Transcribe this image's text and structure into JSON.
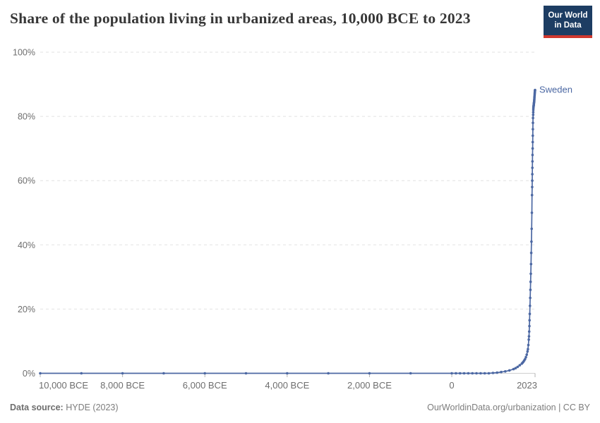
{
  "header": {
    "title": "Share of the population living in urbanized areas, 10,000 BCE to 2023",
    "logo": {
      "line1": "Our World",
      "line2": "in Data",
      "bg_color": "#1d3d63",
      "accent_color": "#d0382e"
    }
  },
  "chart_data": {
    "type": "line",
    "title": "Share of the population living in urbanized areas, 10,000 BCE to 2023",
    "xlabel": "",
    "ylabel": "",
    "unit": "%",
    "xlim": [
      -10000,
      2023
    ],
    "ylim": [
      0,
      100
    ],
    "grid": true,
    "gridline_color": "#e2e2e2",
    "axis_color": "#cfcfcf",
    "tick_color": "#b3b3b3",
    "axis_label_color": "#6e6e6e",
    "legend_position": "end-of-line",
    "x_ticks": [
      {
        "year": -10000,
        "label": "10,000 BCE"
      },
      {
        "year": -8000,
        "label": "8,000 BCE"
      },
      {
        "year": -6000,
        "label": "6,000 BCE"
      },
      {
        "year": -4000,
        "label": "4,000 BCE"
      },
      {
        "year": -2000,
        "label": "2,000 BCE"
      },
      {
        "year": 0,
        "label": "0"
      },
      {
        "year": 2023,
        "label": "2023"
      }
    ],
    "y_ticks": [
      {
        "value": 0,
        "label": "0%"
      },
      {
        "value": 20,
        "label": "20%"
      },
      {
        "value": 40,
        "label": "40%"
      },
      {
        "value": 60,
        "label": "60%"
      },
      {
        "value": 80,
        "label": "80%"
      },
      {
        "value": 100,
        "label": "100%"
      }
    ],
    "series": [
      {
        "name": "Sweden",
        "color": "#4c68a3",
        "points": [
          [
            -10000,
            0
          ],
          [
            -9000,
            0
          ],
          [
            -8000,
            0
          ],
          [
            -7000,
            0
          ],
          [
            -6000,
            0
          ],
          [
            -5000,
            0
          ],
          [
            -4000,
            0
          ],
          [
            -3000,
            0
          ],
          [
            -2000,
            0
          ],
          [
            -1000,
            0
          ],
          [
            0,
            0
          ],
          [
            100,
            0
          ],
          [
            200,
            0
          ],
          [
            300,
            0
          ],
          [
            400,
            0
          ],
          [
            500,
            0
          ],
          [
            600,
            0
          ],
          [
            700,
            0
          ],
          [
            800,
            0
          ],
          [
            900,
            0
          ],
          [
            1000,
            0.1
          ],
          [
            1100,
            0.2
          ],
          [
            1200,
            0.4
          ],
          [
            1300,
            0.6
          ],
          [
            1400,
            0.9
          ],
          [
            1500,
            1.3
          ],
          [
            1550,
            1.6
          ],
          [
            1600,
            2
          ],
          [
            1650,
            2.5
          ],
          [
            1700,
            3
          ],
          [
            1720,
            3.3
          ],
          [
            1740,
            3.6
          ],
          [
            1760,
            4
          ],
          [
            1780,
            4.4
          ],
          [
            1800,
            5
          ],
          [
            1820,
            5.8
          ],
          [
            1840,
            6.8
          ],
          [
            1850,
            7.5
          ],
          [
            1860,
            8.8
          ],
          [
            1870,
            10.5
          ],
          [
            1875,
            11.5
          ],
          [
            1880,
            13
          ],
          [
            1885,
            14.7
          ],
          [
            1890,
            16.5
          ],
          [
            1895,
            18.5
          ],
          [
            1900,
            21
          ],
          [
            1905,
            23.5
          ],
          [
            1910,
            26
          ],
          [
            1915,
            28.5
          ],
          [
            1920,
            31
          ],
          [
            1925,
            34
          ],
          [
            1930,
            37.5
          ],
          [
            1935,
            41
          ],
          [
            1940,
            45
          ],
          [
            1945,
            50
          ],
          [
            1950,
            55.5
          ],
          [
            1952,
            58
          ],
          [
            1954,
            60
          ],
          [
            1956,
            62
          ],
          [
            1958,
            64
          ],
          [
            1960,
            66
          ],
          [
            1962,
            68
          ],
          [
            1964,
            70
          ],
          [
            1966,
            72
          ],
          [
            1968,
            74
          ],
          [
            1970,
            76
          ],
          [
            1972,
            78
          ],
          [
            1974,
            79.5
          ],
          [
            1976,
            80.5
          ],
          [
            1978,
            81.3
          ],
          [
            1980,
            82
          ],
          [
            1982,
            82.5
          ],
          [
            1984,
            82.8
          ],
          [
            1986,
            83.1
          ],
          [
            1988,
            83.3
          ],
          [
            1990,
            83.5
          ],
          [
            1992,
            83.7
          ],
          [
            1994,
            83.9
          ],
          [
            1996,
            84.1
          ],
          [
            1998,
            84.3
          ],
          [
            2000,
            84.5
          ],
          [
            2002,
            84.8
          ],
          [
            2004,
            85.1
          ],
          [
            2006,
            85.4
          ],
          [
            2008,
            85.8
          ],
          [
            2010,
            86.2
          ],
          [
            2012,
            86.6
          ],
          [
            2014,
            87
          ],
          [
            2016,
            87.3
          ],
          [
            2018,
            87.6
          ],
          [
            2020,
            87.9
          ],
          [
            2022,
            88.1
          ],
          [
            2023,
            88.2
          ]
        ]
      }
    ]
  },
  "footer": {
    "datasource_label": "Data source:",
    "datasource_value": " HYDE (2023)",
    "attribution": "OurWorldinData.org/urbanization | CC BY"
  }
}
